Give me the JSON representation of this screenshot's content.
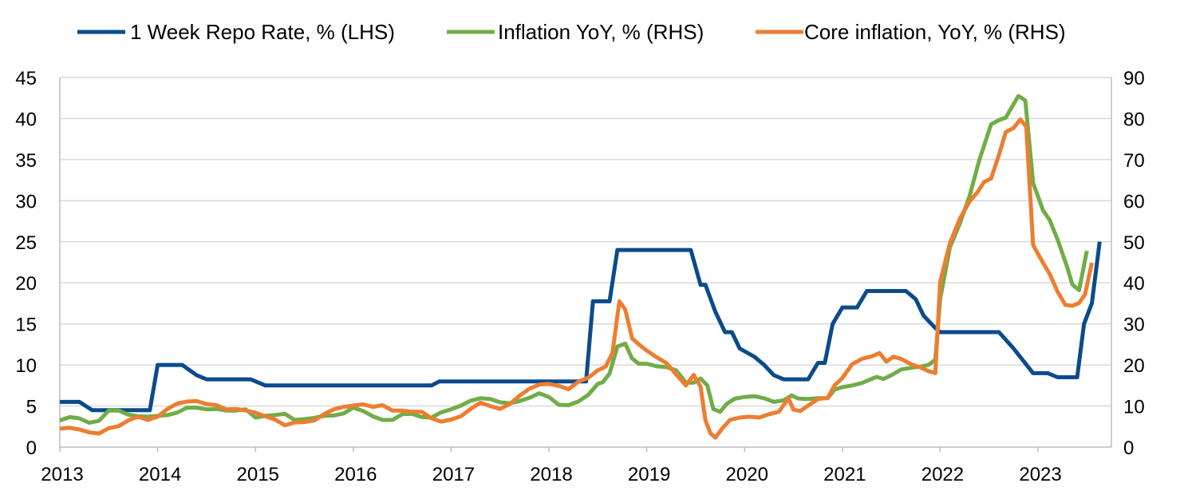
{
  "chart_data": {
    "type": "line",
    "title": "",
    "xlabel": "",
    "ylabel_left": "",
    "ylabel_right": "",
    "x_tick_labels": [
      "2013",
      "2014",
      "2015",
      "2016",
      "2017",
      "2018",
      "2019",
      "2020",
      "2021",
      "2022",
      "2023"
    ],
    "xlim": [
      2013.0,
      2023.75
    ],
    "ylim_left": [
      0,
      45
    ],
    "ylim_right": [
      0,
      90
    ],
    "y_ticks_left": [
      0,
      5,
      10,
      15,
      20,
      25,
      30,
      35,
      40,
      45
    ],
    "y_ticks_right": [
      0,
      10,
      20,
      30,
      40,
      50,
      60,
      70,
      80,
      90
    ],
    "grid": "horizontal",
    "legend_position": "top-center",
    "series": [
      {
        "name": "1 Week Repo Rate, % (LHS)",
        "axis": "left",
        "color": "#0b4b8c",
        "points": [
          [
            2013.0,
            5.5
          ],
          [
            2013.2,
            5.5
          ],
          [
            2013.33,
            4.5
          ],
          [
            2013.92,
            4.5
          ],
          [
            2014.0,
            10
          ],
          [
            2014.25,
            10
          ],
          [
            2014.4,
            8.75
          ],
          [
            2014.5,
            8.25
          ],
          [
            2014.95,
            8.25
          ],
          [
            2015.1,
            7.5
          ],
          [
            2016.5,
            7.5
          ],
          [
            2016.8,
            7.5
          ],
          [
            2016.88,
            8.0
          ],
          [
            2018.3,
            8.0
          ],
          [
            2018.38,
            8.0
          ],
          [
            2018.45,
            17.75
          ],
          [
            2018.62,
            17.75
          ],
          [
            2018.7,
            24
          ],
          [
            2019.45,
            24
          ],
          [
            2019.55,
            19.75
          ],
          [
            2019.6,
            19.75
          ],
          [
            2019.7,
            16.5
          ],
          [
            2019.8,
            14
          ],
          [
            2019.87,
            14
          ],
          [
            2019.95,
            12
          ],
          [
            2020.1,
            11
          ],
          [
            2020.2,
            10
          ],
          [
            2020.3,
            8.75
          ],
          [
            2020.4,
            8.25
          ],
          [
            2020.65,
            8.25
          ],
          [
            2020.75,
            10.25
          ],
          [
            2020.82,
            10.25
          ],
          [
            2020.9,
            15
          ],
          [
            2021.0,
            17
          ],
          [
            2021.15,
            17
          ],
          [
            2021.25,
            19
          ],
          [
            2021.65,
            19
          ],
          [
            2021.75,
            18
          ],
          [
            2021.83,
            16
          ],
          [
            2021.95,
            14.5
          ],
          [
            2022.0,
            14
          ],
          [
            2022.6,
            14
          ],
          [
            2022.75,
            12
          ],
          [
            2022.85,
            10.5
          ],
          [
            2022.95,
            9
          ],
          [
            2023.1,
            9
          ],
          [
            2023.2,
            8.5
          ],
          [
            2023.4,
            8.5
          ],
          [
            2023.47,
            15
          ],
          [
            2023.55,
            17.5
          ],
          [
            2023.63,
            25
          ]
        ]
      },
      {
        "name": "Inflation YoY, % (RHS)",
        "axis": "right",
        "color": "#70ad47",
        "points": [
          [
            2013.0,
            6.5
          ],
          [
            2013.1,
            7.3
          ],
          [
            2013.2,
            7.0
          ],
          [
            2013.3,
            5.9
          ],
          [
            2013.4,
            6.4
          ],
          [
            2013.5,
            8.9
          ],
          [
            2013.6,
            8.9
          ],
          [
            2013.7,
            7.9
          ],
          [
            2013.8,
            7.5
          ],
          [
            2013.9,
            7.4
          ],
          [
            2014.0,
            7.6
          ],
          [
            2014.1,
            7.8
          ],
          [
            2014.2,
            8.4
          ],
          [
            2014.3,
            9.6
          ],
          [
            2014.4,
            9.6
          ],
          [
            2014.5,
            9.2
          ],
          [
            2014.6,
            9.3
          ],
          [
            2014.7,
            8.9
          ],
          [
            2014.8,
            8.9
          ],
          [
            2014.9,
            9.2
          ],
          [
            2015.0,
            7.2
          ],
          [
            2015.1,
            7.6
          ],
          [
            2015.2,
            7.8
          ],
          [
            2015.3,
            8.1
          ],
          [
            2015.4,
            6.6
          ],
          [
            2015.5,
            6.8
          ],
          [
            2015.6,
            7.1
          ],
          [
            2015.7,
            7.6
          ],
          [
            2015.8,
            7.7
          ],
          [
            2015.9,
            8.2
          ],
          [
            2016.0,
            9.6
          ],
          [
            2016.1,
            8.8
          ],
          [
            2016.2,
            7.5
          ],
          [
            2016.3,
            6.6
          ],
          [
            2016.4,
            6.6
          ],
          [
            2016.5,
            8.0
          ],
          [
            2016.6,
            8.1
          ],
          [
            2016.7,
            7.3
          ],
          [
            2016.8,
            7.2
          ],
          [
            2016.9,
            8.5
          ],
          [
            2017.0,
            9.2
          ],
          [
            2017.1,
            10.1
          ],
          [
            2017.2,
            11.3
          ],
          [
            2017.3,
            11.9
          ],
          [
            2017.4,
            11.7
          ],
          [
            2017.5,
            10.9
          ],
          [
            2017.6,
            10.7
          ],
          [
            2017.7,
            11.2
          ],
          [
            2017.8,
            12.0
          ],
          [
            2017.9,
            13.1
          ],
          [
            2018.0,
            12.2
          ],
          [
            2018.1,
            10.3
          ],
          [
            2018.2,
            10.2
          ],
          [
            2018.3,
            11.1
          ],
          [
            2018.4,
            12.7
          ],
          [
            2018.5,
            15.4
          ],
          [
            2018.55,
            15.8
          ],
          [
            2018.62,
            17.9
          ],
          [
            2018.7,
            24.5
          ],
          [
            2018.78,
            25.2
          ],
          [
            2018.85,
            21.6
          ],
          [
            2018.92,
            20.3
          ],
          [
            2019.0,
            20.3
          ],
          [
            2019.1,
            19.7
          ],
          [
            2019.2,
            19.5
          ],
          [
            2019.3,
            18.7
          ],
          [
            2019.4,
            15.7
          ],
          [
            2019.48,
            15.7
          ],
          [
            2019.55,
            16.7
          ],
          [
            2019.62,
            15.0
          ],
          [
            2019.68,
            9.3
          ],
          [
            2019.75,
            8.6
          ],
          [
            2019.82,
            10.6
          ],
          [
            2019.9,
            11.8
          ],
          [
            2020.0,
            12.2
          ],
          [
            2020.1,
            12.4
          ],
          [
            2020.2,
            11.9
          ],
          [
            2020.3,
            11.0
          ],
          [
            2020.4,
            11.4
          ],
          [
            2020.48,
            12.6
          ],
          [
            2020.55,
            11.8
          ],
          [
            2020.65,
            11.7
          ],
          [
            2020.75,
            11.9
          ],
          [
            2020.85,
            11.9
          ],
          [
            2020.92,
            14.0
          ],
          [
            2021.0,
            14.6
          ],
          [
            2021.1,
            15.0
          ],
          [
            2021.2,
            15.6
          ],
          [
            2021.3,
            16.6
          ],
          [
            2021.35,
            17.1
          ],
          [
            2021.42,
            16.6
          ],
          [
            2021.5,
            17.5
          ],
          [
            2021.6,
            18.9
          ],
          [
            2021.7,
            19.3
          ],
          [
            2021.8,
            19.6
          ],
          [
            2021.88,
            20.0
          ],
          [
            2021.95,
            21.3
          ],
          [
            2022.0,
            36.1
          ],
          [
            2022.1,
            48.7
          ],
          [
            2022.2,
            54.4
          ],
          [
            2022.3,
            61.1
          ],
          [
            2022.4,
            69.9
          ],
          [
            2022.45,
            73.5
          ],
          [
            2022.52,
            78.6
          ],
          [
            2022.6,
            79.6
          ],
          [
            2022.67,
            80.2
          ],
          [
            2022.75,
            83.5
          ],
          [
            2022.8,
            85.5
          ],
          [
            2022.87,
            84.4
          ],
          [
            2022.95,
            64.3
          ],
          [
            2023.05,
            57.7
          ],
          [
            2023.12,
            55.2
          ],
          [
            2023.2,
            50.5
          ],
          [
            2023.3,
            43.7
          ],
          [
            2023.35,
            39.6
          ],
          [
            2023.42,
            38.2
          ],
          [
            2023.5,
            47.8
          ]
        ]
      },
      {
        "name": "Core inflation, YoY, % (RHS)",
        "axis": "right",
        "color": "#ed7d31",
        "points": [
          [
            2013.0,
            4.5
          ],
          [
            2013.1,
            4.7
          ],
          [
            2013.2,
            4.3
          ],
          [
            2013.3,
            3.6
          ],
          [
            2013.4,
            3.3
          ],
          [
            2013.5,
            4.6
          ],
          [
            2013.6,
            5.1
          ],
          [
            2013.7,
            6.5
          ],
          [
            2013.8,
            7.4
          ],
          [
            2013.9,
            6.6
          ],
          [
            2014.0,
            7.4
          ],
          [
            2014.1,
            9.3
          ],
          [
            2014.2,
            10.6
          ],
          [
            2014.3,
            11.1
          ],
          [
            2014.4,
            11.2
          ],
          [
            2014.5,
            10.5
          ],
          [
            2014.6,
            10.2
          ],
          [
            2014.7,
            9.2
          ],
          [
            2014.8,
            9.3
          ],
          [
            2014.9,
            8.9
          ],
          [
            2015.0,
            8.4
          ],
          [
            2015.1,
            7.5
          ],
          [
            2015.2,
            6.7
          ],
          [
            2015.3,
            5.3
          ],
          [
            2015.4,
            6.0
          ],
          [
            2015.5,
            6.1
          ],
          [
            2015.6,
            6.5
          ],
          [
            2015.7,
            8.0
          ],
          [
            2015.8,
            9.2
          ],
          [
            2015.9,
            9.8
          ],
          [
            2016.0,
            10.1
          ],
          [
            2016.1,
            10.4
          ],
          [
            2016.2,
            9.8
          ],
          [
            2016.3,
            10.2
          ],
          [
            2016.4,
            8.9
          ],
          [
            2016.5,
            8.9
          ],
          [
            2016.6,
            8.6
          ],
          [
            2016.7,
            8.6
          ],
          [
            2016.8,
            7.0
          ],
          [
            2016.9,
            6.2
          ],
          [
            2017.0,
            6.7
          ],
          [
            2017.1,
            7.5
          ],
          [
            2017.2,
            9.3
          ],
          [
            2017.3,
            10.8
          ],
          [
            2017.4,
            10.0
          ],
          [
            2017.5,
            9.3
          ],
          [
            2017.6,
            10.5
          ],
          [
            2017.7,
            12.5
          ],
          [
            2017.8,
            14.2
          ],
          [
            2017.9,
            15.2
          ],
          [
            2018.0,
            15.4
          ],
          [
            2018.1,
            14.9
          ],
          [
            2018.2,
            14.1
          ],
          [
            2018.3,
            15.9
          ],
          [
            2018.4,
            16.9
          ],
          [
            2018.5,
            18.7
          ],
          [
            2018.58,
            19.6
          ],
          [
            2018.65,
            23.0
          ],
          [
            2018.72,
            35.5
          ],
          [
            2018.78,
            33.5
          ],
          [
            2018.85,
            26.5
          ],
          [
            2018.92,
            25.0
          ],
          [
            2019.0,
            23.5
          ],
          [
            2019.1,
            21.9
          ],
          [
            2019.2,
            20.5
          ],
          [
            2019.3,
            17.7
          ],
          [
            2019.4,
            15.0
          ],
          [
            2019.48,
            17.6
          ],
          [
            2019.55,
            14.7
          ],
          [
            2019.6,
            6.5
          ],
          [
            2019.65,
            3.4
          ],
          [
            2019.7,
            2.3
          ],
          [
            2019.77,
            4.5
          ],
          [
            2019.85,
            6.6
          ],
          [
            2019.95,
            7.2
          ],
          [
            2020.05,
            7.4
          ],
          [
            2020.15,
            7.2
          ],
          [
            2020.25,
            8.0
          ],
          [
            2020.35,
            8.6
          ],
          [
            2020.45,
            11.9
          ],
          [
            2020.5,
            9.1
          ],
          [
            2020.57,
            8.8
          ],
          [
            2020.65,
            10.1
          ],
          [
            2020.75,
            11.7
          ],
          [
            2020.85,
            12.0
          ],
          [
            2020.92,
            15.0
          ],
          [
            2021.0,
            16.8
          ],
          [
            2021.1,
            20.2
          ],
          [
            2021.2,
            21.5
          ],
          [
            2021.3,
            22.1
          ],
          [
            2021.38,
            22.9
          ],
          [
            2021.45,
            20.8
          ],
          [
            2021.52,
            22.0
          ],
          [
            2021.6,
            21.5
          ],
          [
            2021.7,
            20.2
          ],
          [
            2021.8,
            19.4
          ],
          [
            2021.88,
            18.5
          ],
          [
            2021.95,
            18.0
          ],
          [
            2022.0,
            40.3
          ],
          [
            2022.1,
            49.7
          ],
          [
            2022.2,
            55.6
          ],
          [
            2022.3,
            59.8
          ],
          [
            2022.38,
            62.0
          ],
          [
            2022.45,
            64.6
          ],
          [
            2022.52,
            65.4
          ],
          [
            2022.6,
            71.1
          ],
          [
            2022.67,
            76.7
          ],
          [
            2022.75,
            77.7
          ],
          [
            2022.82,
            79.8
          ],
          [
            2022.88,
            78.0
          ],
          [
            2022.95,
            49.2
          ],
          [
            2023.05,
            44.9
          ],
          [
            2023.12,
            42.1
          ],
          [
            2023.2,
            37.8
          ],
          [
            2023.28,
            34.6
          ],
          [
            2023.35,
            34.4
          ],
          [
            2023.42,
            35.1
          ],
          [
            2023.48,
            37.1
          ],
          [
            2023.55,
            44.9
          ]
        ]
      }
    ]
  }
}
